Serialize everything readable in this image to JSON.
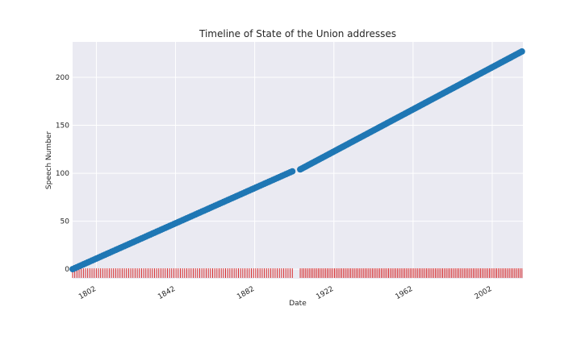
{
  "chart_data": {
    "type": "scatter",
    "title": "Timeline of State of the Union addresses",
    "xlabel": "Date",
    "ylabel": "Speech Number",
    "xlim": [
      1790.0,
      2017.5
    ],
    "ylim": [
      -10,
      237
    ],
    "xticks": [
      1802,
      1842,
      1882,
      1922,
      1962,
      2002
    ],
    "yticks": [
      0,
      50,
      100,
      150,
      200
    ],
    "grid": true,
    "rug": true,
    "series": [
      {
        "color": "#1f77b4",
        "segments": [
          {
            "start_year": 1790,
            "end_year": 1901,
            "start_number": 0,
            "end_number": 102
          },
          {
            "start_year": 1905,
            "end_year": 2017,
            "start_number": 104,
            "end_number": 227
          }
        ]
      }
    ],
    "rug_color": "#d62728",
    "background_color": "#eaeaf2"
  }
}
